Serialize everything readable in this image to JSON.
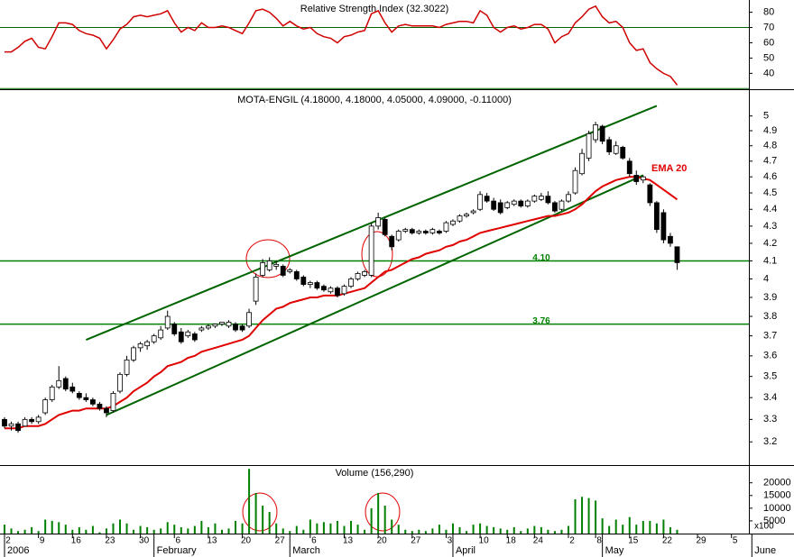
{
  "chart_data": [
    {
      "type": "line",
      "title": "Relative Strength Index (32.3022)",
      "color": "#d00000",
      "ylim": [
        29,
        88
      ],
      "yticks": [
        40,
        50,
        60,
        70,
        80
      ],
      "levels": [
        30,
        70
      ],
      "level_color": "#006400",
      "values": [
        54,
        54,
        57,
        61,
        63,
        57,
        56,
        64,
        73,
        73,
        72,
        68,
        66,
        65,
        63,
        56,
        62,
        69,
        72,
        77,
        78,
        77,
        78,
        79,
        81,
        73,
        67,
        70,
        68,
        73,
        70,
        70,
        71,
        70,
        68,
        66,
        73,
        81,
        82,
        80,
        76,
        71,
        74,
        71,
        69,
        70,
        66,
        64,
        63,
        60,
        64,
        65,
        67,
        68,
        79,
        81,
        73,
        67,
        71,
        72,
        71,
        71,
        71,
        71,
        70,
        72,
        73,
        74,
        74,
        73,
        81,
        78,
        70,
        67,
        70,
        71,
        69,
        70,
        72,
        72,
        69,
        60,
        64,
        66,
        73,
        77,
        82,
        84,
        77,
        73,
        74,
        70,
        60,
        55,
        56,
        47,
        43,
        40,
        38,
        32.3,
        null,
        null,
        null,
        null,
        null,
        null,
        null,
        null,
        null,
        null
      ]
    },
    {
      "type": "candlestick",
      "title": "MOTA-ENGIL (4.18000, 4.18000, 4.05000, 4.09000, -0.11000)",
      "log": true,
      "ylim": [
        3.1,
        5.18
      ],
      "yticks": [
        3.2,
        3.3,
        3.4,
        3.5,
        3.6,
        3.7,
        3.8,
        3.9,
        4.0,
        4.1,
        4.2,
        4.3,
        4.4,
        4.5,
        4.6,
        4.7,
        4.8,
        4.9,
        5.0
      ],
      "up_color": "#ffffff",
      "down_color": "#000000",
      "open": [
        3.3,
        3.27,
        3.28,
        3.27,
        3.3,
        3.29,
        3.33,
        3.39,
        3.45,
        3.49,
        3.45,
        3.42,
        3.4,
        3.39,
        3.37,
        3.35,
        3.34,
        3.43,
        3.51,
        3.58,
        3.64,
        3.65,
        3.67,
        3.69,
        3.74,
        3.76,
        3.72,
        3.7,
        3.71,
        3.73,
        3.74,
        3.75,
        3.76,
        3.75,
        3.76,
        3.75,
        3.75,
        3.88,
        4.02,
        4.05,
        4.07,
        4.07,
        4.04,
        4.04,
        4.01,
        3.97,
        3.98,
        3.96,
        3.93,
        3.95,
        3.92,
        3.96,
        4.0,
        4.02,
        4.02,
        4.3,
        4.34,
        4.24,
        4.22,
        4.27,
        4.28,
        4.26,
        4.27,
        4.26,
        4.27,
        4.27,
        4.31,
        4.33,
        4.36,
        4.38,
        4.4,
        4.48,
        4.45,
        4.44,
        4.41,
        4.43,
        4.45,
        4.42,
        4.45,
        4.46,
        4.48,
        4.44,
        4.4,
        4.45,
        4.5,
        4.62,
        4.72,
        4.84,
        4.93,
        4.84,
        4.75,
        4.79,
        4.7,
        4.61,
        4.58,
        4.55,
        4.44,
        4.38,
        4.24,
        4.18,
        null,
        null,
        null,
        null,
        null,
        null,
        null,
        null,
        null,
        null
      ],
      "high": [
        3.31,
        3.29,
        3.29,
        3.31,
        3.31,
        3.32,
        3.4,
        3.46,
        3.55,
        3.5,
        3.47,
        3.43,
        3.42,
        3.4,
        3.38,
        3.36,
        3.43,
        3.52,
        3.6,
        3.65,
        3.67,
        3.68,
        3.71,
        3.75,
        3.83,
        3.77,
        3.74,
        3.73,
        3.72,
        3.75,
        3.76,
        3.76,
        3.77,
        3.78,
        3.77,
        3.76,
        3.84,
        4.03,
        4.11,
        4.12,
        4.1,
        4.08,
        4.06,
        4.05,
        4.02,
        3.99,
        3.99,
        3.97,
        3.96,
        3.96,
        3.97,
        4.01,
        4.04,
        4.05,
        4.32,
        4.38,
        4.35,
        4.25,
        4.28,
        4.29,
        4.29,
        4.28,
        4.28,
        4.29,
        4.28,
        4.33,
        4.34,
        4.37,
        4.38,
        4.4,
        4.51,
        4.5,
        4.47,
        4.46,
        4.45,
        4.46,
        4.46,
        4.46,
        4.49,
        4.5,
        4.51,
        4.45,
        4.46,
        4.51,
        4.66,
        4.78,
        4.9,
        4.96,
        4.94,
        4.86,
        4.83,
        4.8,
        4.72,
        4.64,
        4.61,
        4.56,
        4.45,
        4.4,
        4.26,
        4.18,
        null,
        null,
        null,
        null,
        null,
        null,
        null,
        null,
        null,
        null
      ],
      "low": [
        3.26,
        3.25,
        3.24,
        3.27,
        3.28,
        3.28,
        3.32,
        3.38,
        3.44,
        3.43,
        3.42,
        3.39,
        3.38,
        3.36,
        3.34,
        3.31,
        3.33,
        3.42,
        3.5,
        3.57,
        3.62,
        3.63,
        3.66,
        3.68,
        3.73,
        3.7,
        3.66,
        3.69,
        3.67,
        3.72,
        3.73,
        3.74,
        3.75,
        3.74,
        3.72,
        3.72,
        3.74,
        3.86,
        4.01,
        4.04,
        4.05,
        4.01,
        4.03,
        3.99,
        3.96,
        3.95,
        3.94,
        3.93,
        3.92,
        3.9,
        3.91,
        3.95,
        3.99,
        4.01,
        4.01,
        4.28,
        4.24,
        4.16,
        4.21,
        4.26,
        4.25,
        4.25,
        4.25,
        4.25,
        4.25,
        4.26,
        4.3,
        4.32,
        4.35,
        4.37,
        4.39,
        4.44,
        4.39,
        4.37,
        4.4,
        4.42,
        4.41,
        4.41,
        4.44,
        4.45,
        4.43,
        4.38,
        4.39,
        4.44,
        4.49,
        4.61,
        4.7,
        4.82,
        4.81,
        4.74,
        4.74,
        4.71,
        4.6,
        4.55,
        4.56,
        4.42,
        4.26,
        4.2,
        4.18,
        4.05,
        null,
        null,
        null,
        null,
        null,
        null,
        null,
        null,
        null,
        null
      ],
      "close": [
        3.27,
        3.28,
        3.25,
        3.3,
        3.29,
        3.31,
        3.39,
        3.45,
        3.48,
        3.44,
        3.43,
        3.4,
        3.39,
        3.37,
        3.35,
        3.33,
        3.42,
        3.51,
        3.58,
        3.64,
        3.66,
        3.67,
        3.7,
        3.73,
        3.8,
        3.71,
        3.67,
        3.72,
        3.68,
        3.74,
        3.75,
        3.76,
        3.77,
        3.77,
        3.73,
        3.73,
        3.82,
        4.01,
        4.09,
        4.1,
        4.08,
        4.02,
        4.05,
        4.0,
        3.97,
        3.98,
        3.95,
        3.94,
        3.95,
        3.91,
        3.96,
        4.0,
        4.03,
        4.04,
        4.3,
        4.35,
        4.25,
        4.18,
        4.27,
        4.28,
        4.26,
        4.27,
        4.26,
        4.28,
        4.26,
        4.32,
        4.33,
        4.36,
        4.37,
        4.39,
        4.49,
        4.45,
        4.4,
        4.38,
        4.44,
        4.45,
        4.42,
        4.45,
        4.48,
        4.48,
        4.44,
        4.39,
        4.45,
        4.49,
        4.64,
        4.75,
        4.88,
        4.94,
        4.83,
        4.76,
        4.8,
        4.72,
        4.62,
        4.57,
        4.6,
        4.44,
        4.28,
        4.22,
        4.2,
        4.09,
        null,
        null,
        null,
        null,
        null,
        null,
        null,
        null,
        null,
        null
      ],
      "series": [
        {
          "name": "EMA 20",
          "color": "#e00000",
          "values": [
            3.26,
            3.26,
            3.26,
            3.27,
            3.27,
            3.27,
            3.28,
            3.3,
            3.32,
            3.33,
            3.34,
            3.34,
            3.35,
            3.35,
            3.35,
            3.35,
            3.36,
            3.38,
            3.4,
            3.43,
            3.45,
            3.47,
            3.5,
            3.52,
            3.55,
            3.56,
            3.57,
            3.59,
            3.6,
            3.62,
            3.63,
            3.64,
            3.65,
            3.66,
            3.67,
            3.68,
            3.7,
            3.74,
            3.78,
            3.81,
            3.84,
            3.85,
            3.87,
            3.88,
            3.89,
            3.9,
            3.9,
            3.91,
            3.91,
            3.91,
            3.92,
            3.93,
            3.94,
            3.95,
            3.98,
            4.01,
            4.04,
            4.05,
            4.07,
            4.09,
            4.11,
            4.12,
            4.14,
            4.15,
            4.16,
            4.18,
            4.19,
            4.21,
            4.22,
            4.24,
            4.26,
            4.27,
            4.28,
            4.29,
            4.3,
            4.31,
            4.32,
            4.33,
            4.34,
            4.35,
            4.36,
            4.36,
            4.37,
            4.38,
            4.4,
            4.43,
            4.47,
            4.51,
            4.54,
            4.56,
            4.58,
            4.59,
            4.6,
            4.6,
            4.59,
            4.58,
            4.55,
            4.52,
            4.49,
            4.46,
            null,
            null,
            null,
            null,
            null,
            null,
            null,
            null,
            null,
            null
          ]
        }
      ],
      "hlines": [
        {
          "value": 4.1,
          "label": "4.10"
        },
        {
          "value": 3.76,
          "label": "3.76"
        }
      ],
      "hline_color": "#008000",
      "trend_lines": [
        {
          "x": [
            12,
            96
          ],
          "y": [
            3.68,
            5.07
          ]
        },
        {
          "x": [
            15,
            94
          ],
          "y": [
            3.32,
            4.61
          ]
        }
      ],
      "trend_color": "#006400"
    },
    {
      "type": "bar",
      "title": "Volume (156,290)",
      "color": "#008000",
      "unit_label": "x100",
      "ylim": [
        0,
        27000
      ],
      "yticks": [
        5000,
        10000,
        15000,
        20000
      ],
      "categories": [
        "2",
        null,
        null,
        null,
        null,
        "9",
        null,
        null,
        null,
        null,
        "16",
        null,
        null,
        null,
        null,
        "23",
        null,
        null,
        null,
        null,
        "30",
        null,
        null,
        null,
        null,
        "6",
        null,
        null,
        null,
        null,
        "13",
        null,
        null,
        null,
        null,
        "20",
        null,
        null,
        null,
        null,
        "27",
        null,
        null,
        null,
        null,
        "6",
        null,
        null,
        null,
        null,
        "13",
        null,
        null,
        null,
        null,
        "20",
        null,
        null,
        null,
        null,
        "27",
        null,
        null,
        null,
        null,
        "3",
        null,
        null,
        null,
        null,
        "10",
        null,
        null,
        null,
        "18",
        null,
        null,
        null,
        "24",
        null,
        null,
        null,
        null,
        "2",
        null,
        null,
        null,
        "8",
        null,
        null,
        null,
        null,
        "15",
        null,
        null,
        null,
        null,
        "22",
        null,
        null,
        null,
        null,
        "29",
        null,
        null,
        null,
        null,
        "5",
        null,
        null
      ],
      "months": [
        "2006",
        null,
        null,
        null,
        null,
        null,
        null,
        null,
        null,
        null,
        null,
        null,
        null,
        null,
        null,
        null,
        null,
        null,
        null,
        null,
        null,
        null,
        "February",
        null,
        null,
        null,
        null,
        null,
        null,
        null,
        null,
        null,
        null,
        null,
        null,
        null,
        null,
        null,
        null,
        null,
        null,
        null,
        "March",
        null,
        null,
        null,
        null,
        null,
        null,
        null,
        null,
        null,
        null,
        null,
        null,
        null,
        null,
        null,
        null,
        null,
        null,
        null,
        null,
        null,
        null,
        null,
        "April",
        null,
        null,
        null,
        null,
        null,
        null,
        null,
        null,
        null,
        null,
        null,
        null,
        null,
        null,
        null,
        null,
        null,
        null,
        null,
        null,
        null,
        "May",
        null,
        null,
        null,
        null,
        null,
        null,
        null,
        null,
        null,
        null,
        null,
        null,
        null,
        null,
        null,
        null,
        null,
        null,
        null,
        null,
        null,
        "June",
        null,
        null,
        null,
        null
      ],
      "values": [
        3500,
        2000,
        1000,
        1500,
        2500,
        1000,
        5500,
        5000,
        4500,
        3500,
        1500,
        2500,
        1500,
        3000,
        500,
        2000,
        4000,
        5500,
        4000,
        1500,
        3000,
        2500,
        1500,
        2000,
        4500,
        3500,
        2500,
        2000,
        3000,
        5000,
        2500,
        4000,
        1500,
        2000,
        5000,
        4000,
        25500,
        16000,
        11000,
        8500,
        4000,
        2000,
        1000,
        3000,
        1500,
        5500,
        4000,
        4500,
        4000,
        5000,
        3000,
        5000,
        3500,
        1500,
        10000,
        16000,
        11000,
        5500,
        3500,
        1500,
        1000,
        1500,
        1000,
        2000,
        3500,
        1500,
        4000,
        2500,
        1000,
        3500,
        4000,
        3000,
        2500,
        2000,
        1500,
        2500,
        1000,
        2000,
        3000,
        2500,
        1500,
        1000,
        1500,
        3000,
        13500,
        14500,
        14000,
        13000,
        6000,
        3000,
        5500,
        3500,
        6500,
        3500,
        5000,
        5000,
        4000,
        5500,
        2500,
        1500,
        null,
        null,
        null,
        null,
        null,
        null,
        null,
        null,
        null,
        null
      ]
    }
  ]
}
